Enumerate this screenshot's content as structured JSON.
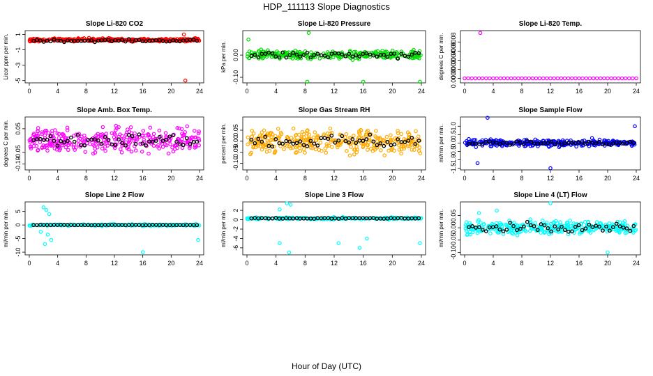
{
  "figure": {
    "title": "HDP_111113  Slope Diagnostics",
    "xlabel": "Hour of Day (UTC)"
  },
  "chart_data": [
    {
      "type": "scatter",
      "id": "co2",
      "title": "Slope Li-820 CO2",
      "ylabel": "Licor ppm per min.",
      "color": "#ff0000",
      "xlim": [
        0,
        24
      ],
      "ylim": [
        -5.3,
        1.5
      ],
      "yticks": [
        1,
        -1,
        -3,
        -5
      ],
      "ytick_labels": [
        "1",
        "-1",
        "-3",
        "-5"
      ],
      "xticks": [
        0,
        4,
        8,
        12,
        16,
        20,
        24
      ],
      "band": {
        "center": 0.3,
        "spread": 0.35,
        "count": 300
      },
      "black_band": {
        "center": 0.2,
        "spread": 0.3
      },
      "outliers": [
        [
          22,
          -5.0
        ],
        [
          21.8,
          1.0
        ]
      ]
    },
    {
      "type": "scatter",
      "id": "pressure",
      "title": "Slope Li-820 Pressure",
      "ylabel": "kPa per min.",
      "color": "#00dd00",
      "xlim": [
        0,
        24
      ],
      "ylim": [
        -0.125,
        0.11
      ],
      "yticks": [
        0.0,
        -0.1
      ],
      "ytick_labels": [
        "0.00",
        "-0.10"
      ],
      "xticks": [
        0,
        4,
        8,
        12,
        16,
        20,
        24
      ],
      "band": {
        "center": 0.0,
        "spread": 0.035,
        "count": 300
      },
      "black_band": {
        "center": 0.0,
        "spread": 0.03
      },
      "outliers": [
        [
          0.2,
          0.07
        ],
        [
          8.5,
          0.1
        ],
        [
          8.3,
          -0.12
        ],
        [
          16,
          -0.12
        ],
        [
          23.8,
          -0.12
        ]
      ]
    },
    {
      "type": "scatter",
      "id": "temp",
      "title": "Slope Li-820 Temp.",
      "ylabel": "degrees C per min.",
      "color": "#ff00ff",
      "xlim": [
        0,
        24
      ],
      "ylim": [
        -0.0001,
        0.00105
      ],
      "yticks": [
        0.0,
        0.0002,
        0.0004,
        0.0006,
        0.0008
      ],
      "ytick_labels": [
        "0.0000",
        "0.0002",
        "0.0004",
        "0.0006",
        "0.0008"
      ],
      "xticks": [
        0,
        4,
        8,
        12,
        16,
        20,
        24
      ],
      "line_series": {
        "value": 0.0
      },
      "outliers": [
        [
          2.2,
          0.001
        ]
      ]
    },
    {
      "type": "scatter",
      "id": "ambtemp",
      "title": "Slope Amb. Box Temp.",
      "ylabel": "degrees C per min.",
      "color": "#ff00ff",
      "xlim": [
        0,
        24
      ],
      "ylim": [
        -0.125,
        0.1
      ],
      "yticks": [
        0.05,
        -0.05,
        -0.1
      ],
      "ytick_labels": [
        "0.05",
        "-0.05",
        "-0.10"
      ],
      "xticks": [
        0,
        4,
        8,
        12,
        16,
        20,
        24
      ],
      "band": {
        "center": 0.0,
        "spread": 0.09,
        "count": 320
      },
      "black_band": {
        "center": 0.0,
        "spread": 0.06
      }
    },
    {
      "type": "scatter",
      "id": "rh",
      "title": "Slope Gas Stream RH",
      "ylabel": "percent per min.",
      "color": "#ffaa00",
      "xlim": [
        0,
        24
      ],
      "ylim": [
        -0.13,
        0.11
      ],
      "yticks": [
        0.05,
        0.0,
        -0.05,
        -0.1
      ],
      "ytick_labels": [
        "0.05",
        "0.00",
        "-0.05",
        "-0.10"
      ],
      "xticks": [
        0,
        4,
        8,
        12,
        16,
        20,
        24
      ],
      "band": {
        "center": 0.0,
        "spread": 0.09,
        "count": 330
      },
      "black_band": {
        "center": 0.0,
        "spread": 0.06
      }
    },
    {
      "type": "scatter",
      "id": "sample",
      "title": "Slope Sample Flow",
      "ylabel": "ml/min per min.",
      "color": "#0000ff",
      "xlim": [
        0,
        24
      ],
      "ylim": [
        -1.6,
        1.55
      ],
      "yticks": [
        1.0,
        0.5,
        0.0,
        -0.5,
        -1.0,
        -1.5
      ],
      "ytick_labels": [
        "1.0",
        "0.5",
        "0.0",
        "-0.5",
        "-1.0",
        "-1.5"
      ],
      "xticks": [
        0,
        4,
        8,
        12,
        16,
        20,
        24
      ],
      "band": {
        "center": 0.0,
        "spread": 0.35,
        "count": 300
      },
      "black_band": {
        "center": 0.0,
        "spread": 0.2
      },
      "outliers": [
        [
          3.2,
          1.5
        ],
        [
          12,
          -1.5
        ],
        [
          23.8,
          1.0
        ],
        [
          1.8,
          -1.2
        ]
      ]
    },
    {
      "type": "scatter",
      "id": "line2",
      "title": "Slope Line 2 Flow",
      "ylabel": "ml/min per min.",
      "color": "#00ffff",
      "xlim": [
        0,
        24
      ],
      "ylim": [
        -11,
        8.5
      ],
      "yticks": [
        5,
        0,
        -5,
        -10
      ],
      "ytick_labels": [
        "5",
        "0",
        "-5",
        "-10"
      ],
      "xticks": [
        0,
        4,
        8,
        12,
        16,
        20,
        24
      ],
      "band": {
        "center": 0.0,
        "spread": 0.6,
        "count": 220
      },
      "black_band": {
        "center": 0.0,
        "spread": 0.15
      },
      "outliers": [
        [
          2.0,
          6.5
        ],
        [
          2.4,
          5.5
        ],
        [
          2.8,
          4.0
        ],
        [
          1.6,
          -2.5
        ],
        [
          2.6,
          -3.5
        ],
        [
          3.1,
          -5.5
        ],
        [
          2.2,
          -7
        ],
        [
          16,
          -10
        ],
        [
          23.8,
          -5.5
        ]
      ]
    },
    {
      "type": "scatter",
      "id": "line3",
      "title": "Slope Line 3 Flow",
      "ylabel": "ml/min per min.",
      "color": "#00ffff",
      "xlim": [
        0,
        24
      ],
      "ylim": [
        -7.5,
        3.8
      ],
      "yticks": [
        2,
        0,
        -2,
        -4,
        -6
      ],
      "ytick_labels": [
        "2",
        "0",
        "-2",
        "-4",
        "-6"
      ],
      "xticks": [
        0,
        4,
        8,
        12,
        16,
        20,
        24
      ],
      "band": {
        "center": 0.3,
        "spread": 0.4,
        "count": 220
      },
      "black_band": {
        "center": 0.3,
        "spread": 0.2
      },
      "outliers": [
        [
          4.5,
          2.2
        ],
        [
          5.5,
          3.5
        ],
        [
          6,
          3.2
        ],
        [
          4.5,
          -5
        ],
        [
          5.8,
          -7
        ],
        [
          12.6,
          -5
        ],
        [
          15.5,
          -6
        ],
        [
          16.5,
          -4
        ],
        [
          23.8,
          -5
        ]
      ]
    },
    {
      "type": "scatter",
      "id": "line4",
      "title": "Slope Line 4 (LT) Flow",
      "ylabel": "ml/min per min.",
      "color": "#00ffff",
      "xlim": [
        0,
        24
      ],
      "ylim": [
        -0.11,
        0.105
      ],
      "yticks": [
        0.05,
        0.0,
        -0.05,
        -0.1
      ],
      "ytick_labels": [
        "0.05",
        "0.00",
        "-0.05",
        "-0.10"
      ],
      "xticks": [
        0,
        4,
        8,
        12,
        16,
        20,
        24
      ],
      "band": {
        "center": 0.0,
        "spread": 0.045,
        "count": 320
      },
      "black_band": {
        "center": 0.0,
        "spread": 0.035
      },
      "outliers": [
        [
          12,
          0.1
        ],
        [
          20,
          -0.1
        ],
        [
          2,
          0.06
        ],
        [
          4.5,
          0.07
        ]
      ]
    }
  ]
}
